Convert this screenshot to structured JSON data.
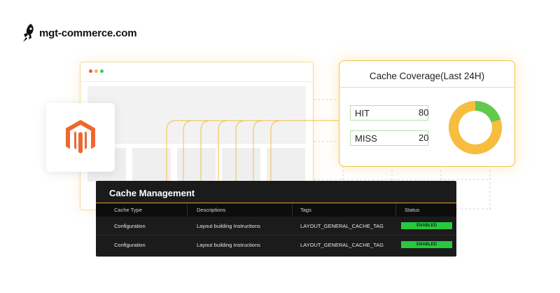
{
  "brand": {
    "name": "mgt-commerce.com",
    "icon": "rocket-icon"
  },
  "coverage": {
    "title": "Cache Coverage(Last 24H)",
    "metrics": [
      {
        "label": "HIT",
        "value": "80"
      },
      {
        "label": "MISS",
        "value": "20"
      }
    ],
    "chart": {
      "type": "donut",
      "hit_percent": 80,
      "miss_percent": 20,
      "hit_color": "#f7bd3f",
      "miss_color": "#63c84e"
    }
  },
  "cache_management": {
    "title": "Cache Management",
    "columns": [
      "Cache Type",
      "Descriptions",
      "Tags",
      "Status"
    ],
    "rows": [
      {
        "type": "Configuration",
        "description": "Layout building Instructions",
        "tag": "LAYOUT_GENERAL_CACHE_TAG",
        "status": "ENABLED"
      },
      {
        "type": "Configuration",
        "description": "Layout building Instructions",
        "tag": "LAYOUT_GENERAL_CACHE_TAG",
        "status": "ENABLED"
      }
    ],
    "status_color": "#27c93f"
  },
  "colors": {
    "accent": "#f7bd3f",
    "magento": "#ee672f",
    "panel_bg": "#1b1b1b"
  }
}
